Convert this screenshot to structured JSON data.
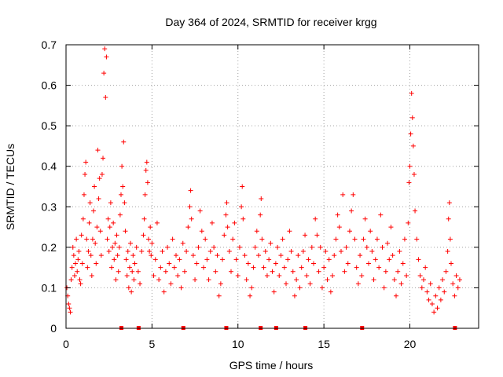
{
  "chart_data": {
    "type": "scatter",
    "title": "Day 364 of 2024, SRMTID for receiver krgg",
    "xlabel": "GPS time / hours",
    "ylabel": "SRMTID / TECUs",
    "xlim": [
      0,
      24
    ],
    "ylim": [
      0,
      0.7
    ],
    "xticks": [
      0,
      5,
      10,
      15,
      20
    ],
    "yticks": [
      0,
      0.1,
      0.2,
      0.3,
      0.4,
      0.5,
      0.6,
      0.7
    ],
    "xtick_labels": [
      "0",
      "5",
      "10",
      "15",
      "20"
    ],
    "ytick_labels": [
      "0",
      "0.1",
      "0.2",
      "0.3",
      "0.4",
      "0.5",
      "0.6",
      "0.7"
    ],
    "grid": true,
    "color": "#ff0000",
    "marker": "plus",
    "series": [
      {
        "name": "SRMTID",
        "points": [
          [
            0.05,
            0.1
          ],
          [
            0.1,
            0.08
          ],
          [
            0.15,
            0.06
          ],
          [
            0.2,
            0.05
          ],
          [
            0.25,
            0.04
          ],
          [
            0.3,
            0.12
          ],
          [
            0.35,
            0.15
          ],
          [
            0.4,
            0.2
          ],
          [
            0.45,
            0.18
          ],
          [
            0.5,
            0.13
          ],
          [
            0.55,
            0.16
          ],
          [
            0.6,
            0.22
          ],
          [
            0.65,
            0.14
          ],
          [
            0.7,
            0.17
          ],
          [
            0.75,
            0.19
          ],
          [
            0.8,
            0.12
          ],
          [
            0.85,
            0.11
          ],
          [
            0.9,
            0.23
          ],
          [
            0.95,
            0.16
          ],
          [
            1.0,
            0.27
          ],
          [
            1.05,
            0.33
          ],
          [
            1.1,
            0.38
          ],
          [
            1.15,
            0.41
          ],
          [
            1.2,
            0.22
          ],
          [
            1.25,
            0.15
          ],
          [
            1.3,
            0.19
          ],
          [
            1.35,
            0.26
          ],
          [
            1.4,
            0.31
          ],
          [
            1.45,
            0.18
          ],
          [
            1.5,
            0.13
          ],
          [
            1.55,
            0.22
          ],
          [
            1.6,
            0.29
          ],
          [
            1.65,
            0.35
          ],
          [
            1.7,
            0.21
          ],
          [
            1.75,
            0.16
          ],
          [
            1.8,
            0.25
          ],
          [
            1.85,
            0.44
          ],
          [
            1.9,
            0.32
          ],
          [
            1.95,
            0.37
          ],
          [
            2.0,
            0.24
          ],
          [
            2.05,
            0.18
          ],
          [
            2.1,
            0.38
          ],
          [
            2.15,
            0.42
          ],
          [
            2.2,
            0.63
          ],
          [
            2.25,
            0.69
          ],
          [
            2.3,
            0.57
          ],
          [
            2.35,
            0.67
          ],
          [
            2.4,
            0.22
          ],
          [
            2.45,
            0.27
          ],
          [
            2.5,
            0.19
          ],
          [
            2.55,
            0.25
          ],
          [
            2.6,
            0.31
          ],
          [
            2.65,
            0.15
          ],
          [
            2.7,
            0.2
          ],
          [
            2.75,
            0.26
          ],
          [
            2.8,
            0.17
          ],
          [
            2.85,
            0.21
          ],
          [
            2.9,
            0.12
          ],
          [
            2.95,
            0.23
          ],
          [
            3.0,
            0.18
          ],
          [
            3.05,
            0.14
          ],
          [
            3.1,
            0.2
          ],
          [
            3.15,
            0.28
          ],
          [
            3.2,
            0.33
          ],
          [
            3.25,
            0.4
          ],
          [
            3.3,
            0.35
          ],
          [
            3.35,
            0.46
          ],
          [
            3.4,
            0.31
          ],
          [
            3.45,
            0.24
          ],
          [
            3.5,
            0.17
          ],
          [
            3.55,
            0.13
          ],
          [
            3.6,
            0.19
          ],
          [
            3.65,
            0.1
          ],
          [
            3.7,
            0.15
          ],
          [
            3.75,
            0.21
          ],
          [
            3.8,
            0.09
          ],
          [
            3.85,
            0.14
          ],
          [
            3.9,
            0.18
          ],
          [
            3.95,
            0.12
          ],
          [
            4.0,
            0.16
          ],
          [
            4.1,
            0.2
          ],
          [
            4.2,
            0.14
          ],
          [
            4.3,
            0.11
          ],
          [
            4.4,
            0.19
          ],
          [
            4.5,
            0.23
          ],
          [
            4.55,
            0.27
          ],
          [
            4.6,
            0.33
          ],
          [
            4.65,
            0.39
          ],
          [
            4.7,
            0.41
          ],
          [
            4.75,
            0.36
          ],
          [
            4.8,
            0.22
          ],
          [
            4.85,
            0.19
          ],
          [
            4.9,
            0.25
          ],
          [
            4.95,
            0.18
          ],
          [
            5.0,
            0.21
          ],
          [
            5.1,
            0.13
          ],
          [
            5.2,
            0.17
          ],
          [
            5.3,
            0.26
          ],
          [
            5.4,
            0.12
          ],
          [
            5.5,
            0.15
          ],
          [
            5.6,
            0.19
          ],
          [
            5.7,
            0.09
          ],
          [
            5.8,
            0.14
          ],
          [
            5.9,
            0.2
          ],
          [
            6.0,
            0.16
          ],
          [
            6.1,
            0.11
          ],
          [
            6.2,
            0.22
          ],
          [
            6.3,
            0.15
          ],
          [
            6.4,
            0.18
          ],
          [
            6.5,
            0.13
          ],
          [
            6.6,
            0.17
          ],
          [
            6.7,
            0.1
          ],
          [
            6.8,
            0.21
          ],
          [
            6.9,
            0.14
          ],
          [
            7.0,
            0.19
          ],
          [
            7.1,
            0.25
          ],
          [
            7.2,
            0.3
          ],
          [
            7.25,
            0.34
          ],
          [
            7.3,
            0.27
          ],
          [
            7.4,
            0.18
          ],
          [
            7.5,
            0.12
          ],
          [
            7.6,
            0.16
          ],
          [
            7.7,
            0.2
          ],
          [
            7.8,
            0.29
          ],
          [
            7.9,
            0.24
          ],
          [
            8.0,
            0.15
          ],
          [
            8.1,
            0.22
          ],
          [
            8.2,
            0.17
          ],
          [
            8.3,
            0.12
          ],
          [
            8.4,
            0.19
          ],
          [
            8.5,
            0.26
          ],
          [
            8.6,
            0.2
          ],
          [
            8.7,
            0.14
          ],
          [
            8.8,
            0.18
          ],
          [
            8.9,
            0.08
          ],
          [
            9.0,
            0.11
          ],
          [
            9.1,
            0.17
          ],
          [
            9.2,
            0.23
          ],
          [
            9.3,
            0.28
          ],
          [
            9.35,
            0.31
          ],
          [
            9.4,
            0.25
          ],
          [
            9.5,
            0.19
          ],
          [
            9.6,
            0.14
          ],
          [
            9.7,
            0.22
          ],
          [
            9.8,
            0.26
          ],
          [
            9.9,
            0.17
          ],
          [
            10.0,
            0.13
          ],
          [
            10.1,
            0.2
          ],
          [
            10.2,
            0.3
          ],
          [
            10.25,
            0.35
          ],
          [
            10.3,
            0.27
          ],
          [
            10.4,
            0.18
          ],
          [
            10.5,
            0.12
          ],
          [
            10.6,
            0.16
          ],
          [
            10.7,
            0.08
          ],
          [
            10.8,
            0.1
          ],
          [
            10.9,
            0.15
          ],
          [
            11.0,
            0.2
          ],
          [
            11.1,
            0.24
          ],
          [
            11.2,
            0.18
          ],
          [
            11.3,
            0.28
          ],
          [
            11.35,
            0.32
          ],
          [
            11.4,
            0.22
          ],
          [
            11.5,
            0.15
          ],
          [
            11.6,
            0.19
          ],
          [
            11.7,
            0.13
          ],
          [
            11.8,
            0.17
          ],
          [
            11.9,
            0.21
          ],
          [
            12.0,
            0.14
          ],
          [
            12.1,
            0.09
          ],
          [
            12.2,
            0.16
          ],
          [
            12.3,
            0.2
          ],
          [
            12.4,
            0.13
          ],
          [
            12.5,
            0.18
          ],
          [
            12.6,
            0.22
          ],
          [
            12.7,
            0.15
          ],
          [
            12.8,
            0.11
          ],
          [
            12.9,
            0.17
          ],
          [
            13.0,
            0.24
          ],
          [
            13.1,
            0.19
          ],
          [
            13.2,
            0.14
          ],
          [
            13.3,
            0.08
          ],
          [
            13.4,
            0.12
          ],
          [
            13.5,
            0.18
          ],
          [
            13.6,
            0.1
          ],
          [
            13.7,
            0.15
          ],
          [
            13.8,
            0.19
          ],
          [
            13.9,
            0.23
          ],
          [
            14.0,
            0.13
          ],
          [
            14.1,
            0.17
          ],
          [
            14.2,
            0.11
          ],
          [
            14.3,
            0.2
          ],
          [
            14.4,
            0.16
          ],
          [
            14.5,
            0.27
          ],
          [
            14.6,
            0.23
          ],
          [
            14.7,
            0.14
          ],
          [
            14.8,
            0.2
          ],
          [
            14.9,
            0.1
          ],
          [
            15.0,
            0.15
          ],
          [
            15.1,
            0.19
          ],
          [
            15.2,
            0.12
          ],
          [
            15.3,
            0.17
          ],
          [
            15.4,
            0.09
          ],
          [
            15.5,
            0.13
          ],
          [
            15.6,
            0.18
          ],
          [
            15.7,
            0.22
          ],
          [
            15.8,
            0.28
          ],
          [
            15.9,
            0.25
          ],
          [
            16.0,
            0.19
          ],
          [
            16.1,
            0.33
          ],
          [
            16.2,
            0.14
          ],
          [
            16.3,
            0.2
          ],
          [
            16.4,
            0.16
          ],
          [
            16.5,
            0.24
          ],
          [
            16.6,
            0.29
          ],
          [
            16.7,
            0.33
          ],
          [
            16.8,
            0.22
          ],
          [
            16.9,
            0.15
          ],
          [
            17.0,
            0.11
          ],
          [
            17.1,
            0.18
          ],
          [
            17.2,
            0.13
          ],
          [
            17.3,
            0.22
          ],
          [
            17.4,
            0.27
          ],
          [
            17.5,
            0.2
          ],
          [
            17.6,
            0.16
          ],
          [
            17.7,
            0.24
          ],
          [
            17.8,
            0.19
          ],
          [
            17.9,
            0.12
          ],
          [
            18.0,
            0.17
          ],
          [
            18.1,
            0.22
          ],
          [
            18.2,
            0.15
          ],
          [
            18.3,
            0.28
          ],
          [
            18.4,
            0.2
          ],
          [
            18.5,
            0.1
          ],
          [
            18.6,
            0.14
          ],
          [
            18.7,
            0.21
          ],
          [
            18.8,
            0.17
          ],
          [
            18.9,
            0.25
          ],
          [
            19.0,
            0.18
          ],
          [
            19.1,
            0.12
          ],
          [
            19.2,
            0.08
          ],
          [
            19.3,
            0.14
          ],
          [
            19.4,
            0.19
          ],
          [
            19.5,
            0.11
          ],
          [
            19.6,
            0.16
          ],
          [
            19.7,
            0.22
          ],
          [
            19.8,
            0.13
          ],
          [
            19.9,
            0.26
          ],
          [
            19.95,
            0.36
          ],
          [
            20.0,
            0.4
          ],
          [
            20.05,
            0.48
          ],
          [
            20.1,
            0.58
          ],
          [
            20.15,
            0.52
          ],
          [
            20.2,
            0.45
          ],
          [
            20.25,
            0.38
          ],
          [
            20.3,
            0.29
          ],
          [
            20.4,
            0.22
          ],
          [
            20.5,
            0.17
          ],
          [
            20.6,
            0.13
          ],
          [
            20.7,
            0.1
          ],
          [
            20.8,
            0.12
          ],
          [
            20.9,
            0.15
          ],
          [
            21.0,
            0.09
          ],
          [
            21.1,
            0.07
          ],
          [
            21.2,
            0.11
          ],
          [
            21.3,
            0.06
          ],
          [
            21.4,
            0.04
          ],
          [
            21.5,
            0.08
          ],
          [
            21.6,
            0.05
          ],
          [
            21.7,
            0.1
          ],
          [
            21.8,
            0.07
          ],
          [
            21.9,
            0.12
          ],
          [
            22.0,
            0.09
          ],
          [
            22.1,
            0.14
          ],
          [
            22.2,
            0.19
          ],
          [
            22.25,
            0.27
          ],
          [
            22.3,
            0.31
          ],
          [
            22.35,
            0.22
          ],
          [
            22.4,
            0.16
          ],
          [
            22.5,
            0.11
          ],
          [
            22.6,
            0.08
          ],
          [
            22.7,
            0.13
          ],
          [
            22.8,
            0.1
          ],
          [
            22.9,
            0.12
          ]
        ]
      }
    ],
    "gap_markers_x": [
      3.2,
      4.2,
      6.8,
      9.3,
      11.3,
      12.2,
      13.9,
      17.2,
      22.6
    ]
  }
}
